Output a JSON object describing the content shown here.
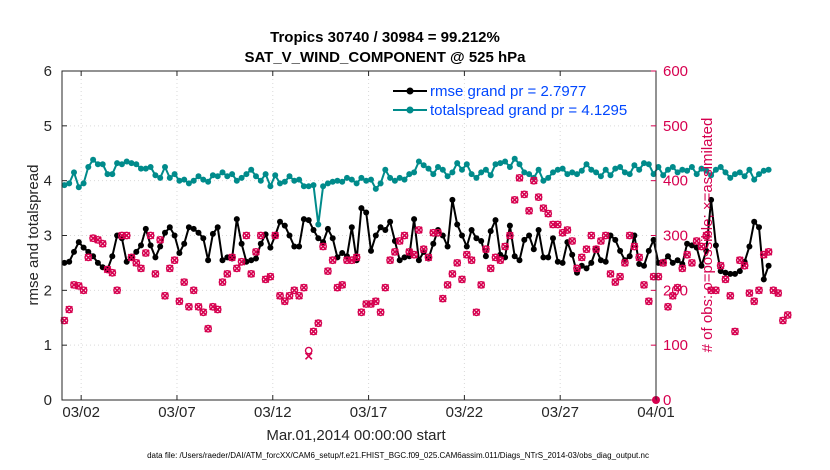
{
  "chart_data": {
    "type": "line",
    "title_line1": "Tropics 30740 / 30984 = 99.212%",
    "title_line2": "SAT_V_WIND_COMPONENT @ 525 hPa",
    "xlabel": "Mar.01,2014 00:00:00 start",
    "ylabel_left": "rmse and totalspread",
    "ylabel_right": "# of obs: o=possible; ×=assimilated",
    "footnote": "data file: /Users/raeder/DAI/ATM_forcXX/CAM6_setup/f.e21.FHIST_BGC.f09_025.CAM6assim.011/Diags_NTrS_2014-03/obs_diag_output.nc",
    "xlim": [
      0.5,
      31.5
    ],
    "ylim_left": [
      0,
      6
    ],
    "ylim_right": [
      0,
      600
    ],
    "x_ticks": [
      1.5,
      6.5,
      11.5,
      16.5,
      21.5,
      26.5,
      31.5
    ],
    "x_tick_labels": [
      "03/02",
      "03/07",
      "03/12",
      "03/17",
      "03/22",
      "03/27",
      "04/01"
    ],
    "y_left_ticks": [
      "0",
      "1",
      "2",
      "3",
      "4",
      "5",
      "6"
    ],
    "y_right_ticks": [
      "0",
      "100",
      "200",
      "300",
      "400",
      "500",
      "600"
    ],
    "colors": {
      "rmse": "#000000",
      "spread": "#008b8b",
      "obs": "#d6004f",
      "legend_text": "#0047ff"
    },
    "series": [
      {
        "name": "rmse grand pr = 2.7977",
        "axis": "left",
        "x_start": 0.625,
        "x_step": 0.25,
        "values": [
          2.5,
          2.52,
          2.7,
          2.88,
          2.78,
          2.7,
          2.62,
          2.5,
          2.42,
          2.38,
          2.62,
          3.0,
          2.95,
          2.52,
          2.6,
          2.7,
          2.82,
          3.12,
          2.82,
          2.6,
          2.8,
          3.05,
          3.15,
          3.0,
          2.68,
          2.85,
          3.15,
          3.12,
          3.05,
          2.95,
          2.55,
          3.03,
          3.15,
          2.55,
          2.6,
          2.58,
          3.3,
          2.85,
          2.52,
          2.55,
          2.58,
          2.85,
          3.02,
          2.78,
          3.0,
          3.25,
          3.18,
          3.0,
          2.8,
          2.8,
          3.3,
          3.28,
          3.1,
          2.95,
          2.88,
          3.12,
          2.95,
          2.6,
          2.68,
          2.62,
          3.15,
          2.55,
          3.5,
          3.42,
          2.72,
          3.0,
          3.15,
          3.1,
          3.25,
          2.9,
          2.55,
          2.6,
          2.62,
          3.3,
          2.55,
          2.7,
          2.58,
          2.85,
          3.1,
          3.0,
          2.8,
          3.65,
          3.2,
          3.0,
          2.8,
          3.1,
          2.95,
          2.9,
          2.62,
          3.08,
          3.28,
          2.65,
          2.6,
          3.18,
          2.62,
          2.55,
          2.92,
          3.0,
          2.75,
          3.1,
          2.6,
          2.6,
          2.95,
          2.52,
          2.5,
          2.88,
          2.65,
          2.32,
          2.45,
          2.4,
          2.5,
          2.75,
          2.55,
          2.52,
          3.0,
          2.92,
          2.72,
          2.55,
          2.62,
          3.0,
          2.48,
          2.45,
          2.72,
          2.92,
          2.5,
          2.52,
          2.62,
          2.5,
          2.55,
          2.48,
          2.85,
          2.82,
          2.78,
          2.45,
          2.72,
          3.65,
          2.82,
          2.35,
          2.32,
          2.3,
          2.3,
          2.35,
          2.52,
          2.8,
          3.25,
          3.15,
          2.2,
          2.45
        ]
      },
      {
        "name": "totalspread grand pr = 4.1295",
        "axis": "left",
        "x_start": 0.625,
        "x_step": 0.25,
        "values": [
          3.92,
          3.95,
          4.15,
          3.88,
          3.95,
          4.25,
          4.38,
          4.3,
          4.3,
          4.12,
          4.12,
          4.32,
          4.3,
          4.35,
          4.32,
          4.3,
          4.22,
          4.22,
          4.25,
          4.1,
          4.05,
          4.25,
          4.05,
          4.12,
          4.0,
          4.02,
          3.95,
          4.0,
          4.08,
          4.02,
          3.98,
          4.1,
          4.08,
          4.15,
          4.08,
          4.12,
          4.0,
          4.05,
          4.12,
          4.2,
          4.08,
          4.0,
          4.12,
          3.9,
          4.1,
          3.95,
          3.98,
          4.08,
          4.0,
          4.02,
          3.9,
          3.9,
          3.92,
          3.2,
          3.9,
          3.95,
          3.98,
          4.0,
          3.98,
          4.05,
          4.02,
          3.95,
          4.05,
          4.0,
          4.02,
          3.85,
          3.95,
          4.2,
          4.05,
          4.0,
          4.05,
          4.02,
          4.12,
          4.15,
          4.35,
          4.28,
          4.22,
          4.12,
          4.25,
          4.2,
          4.08,
          4.15,
          4.32,
          4.2,
          4.3,
          4.12,
          4.05,
          4.15,
          4.2,
          4.1,
          4.3,
          4.32,
          4.35,
          4.25,
          4.4,
          4.3,
          4.15,
          4.12,
          4.05,
          4.2,
          4.0,
          4.05,
          4.15,
          4.2,
          4.22,
          4.12,
          4.15,
          4.12,
          4.18,
          4.3,
          4.2,
          4.15,
          4.08,
          4.2,
          4.1,
          4.22,
          4.25,
          4.15,
          4.12,
          4.28,
          4.2,
          4.32,
          4.3,
          4.12,
          4.25,
          4.1,
          4.2,
          4.25,
          4.15,
          4.2,
          4.18,
          4.25,
          4.12,
          4.22,
          4.18,
          4.1,
          4.2,
          4.25,
          4.15,
          4.05,
          4.12,
          4.15,
          4.08,
          4.2,
          4.02,
          4.12,
          4.18,
          4.2
        ]
      }
    ],
    "obs_possible": {
      "axis": "right",
      "x_start": 0.625,
      "x_step": 0.25,
      "values": [
        145,
        165,
        210,
        208,
        200,
        260,
        295,
        292,
        285,
        238,
        232,
        200,
        300,
        300,
        260,
        250,
        240,
        268,
        300,
        230,
        292,
        190,
        240,
        255,
        180,
        215,
        170,
        200,
        170,
        160,
        130,
        170,
        165,
        215,
        230,
        260,
        240,
        252,
        300,
        230,
        270,
        300,
        220,
        225,
        300,
        190,
        180,
        190,
        200,
        190,
        205,
        90,
        125,
        140,
        280,
        235,
        255,
        205,
        210,
        255,
        255,
        260,
        160,
        175,
        175,
        180,
        160,
        205,
        255,
        270,
        290,
        300,
        270,
        265,
        310,
        275,
        260,
        305,
        305,
        185,
        210,
        230,
        250,
        220,
        265,
        255,
        160,
        210,
        275,
        240,
        260,
        255,
        280,
        300,
        365,
        405,
        375,
        345,
        400,
        370,
        350,
        340,
        320,
        320,
        305,
        310,
        290,
        240,
        260,
        275,
        300,
        275,
        290,
        300,
        230,
        215,
        225,
        250,
        300,
        280,
        260,
        210,
        180,
        225,
        225,
        250,
        170,
        190,
        205,
        240,
        265,
        250,
        290,
        280,
        300,
        200,
        200,
        245,
        220,
        190,
        125,
        255,
        245,
        195,
        180,
        200,
        265,
        270,
        200,
        195,
        145,
        155
      ]
    },
    "obs_assimilated": {
      "axis": "right",
      "x_start": 0.625,
      "x_step": 0.25,
      "values": [
        145,
        165,
        210,
        208,
        200,
        260,
        295,
        292,
        285,
        238,
        232,
        200,
        300,
        300,
        260,
        250,
        240,
        268,
        300,
        230,
        292,
        190,
        240,
        255,
        180,
        215,
        170,
        200,
        170,
        160,
        130,
        170,
        165,
        215,
        230,
        260,
        240,
        252,
        300,
        230,
        270,
        300,
        220,
        225,
        300,
        190,
        180,
        190,
        200,
        190,
        205,
        80,
        125,
        140,
        280,
        235,
        255,
        205,
        210,
        255,
        255,
        260,
        160,
        175,
        175,
        180,
        160,
        205,
        255,
        270,
        290,
        300,
        270,
        265,
        310,
        275,
        260,
        305,
        305,
        185,
        210,
        230,
        250,
        220,
        265,
        255,
        160,
        210,
        275,
        240,
        260,
        255,
        280,
        300,
        365,
        405,
        375,
        345,
        400,
        370,
        350,
        340,
        320,
        320,
        305,
        310,
        290,
        240,
        260,
        275,
        300,
        275,
        290,
        300,
        230,
        215,
        225,
        250,
        300,
        280,
        260,
        210,
        180,
        225,
        225,
        250,
        170,
        190,
        205,
        240,
        265,
        250,
        290,
        280,
        300,
        200,
        200,
        245,
        220,
        190,
        125,
        255,
        245,
        195,
        180,
        200,
        265,
        270,
        200,
        195,
        145,
        155
      ]
    },
    "legend_location": "top-right"
  }
}
